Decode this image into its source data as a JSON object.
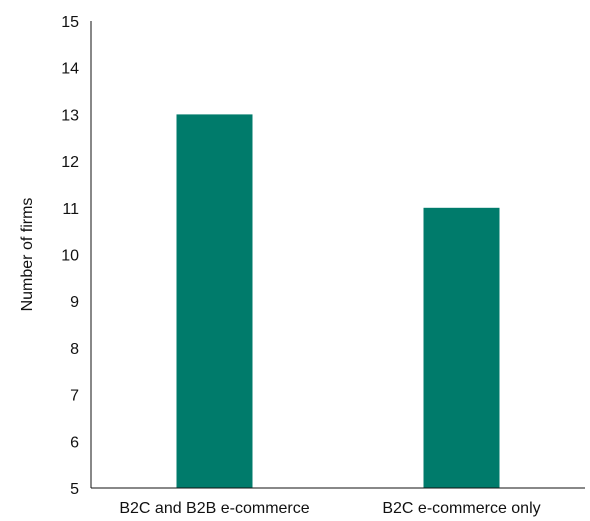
{
  "chart_data": {
    "type": "bar",
    "categories": [
      "B2C and B2B e-commerce",
      "B2C e-commerce only"
    ],
    "values": [
      13,
      11
    ],
    "title": "",
    "xlabel": "",
    "ylabel": "Number of firms",
    "ylim": [
      5,
      15
    ],
    "yticks": [
      5,
      6,
      7,
      8,
      9,
      10,
      11,
      12,
      13,
      14,
      15
    ],
    "grid": false,
    "legend": "none",
    "bar_color": "#007b6b"
  }
}
